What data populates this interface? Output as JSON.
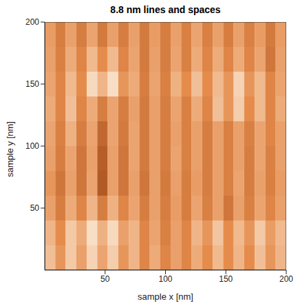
{
  "chart_data": {
    "type": "heatmap",
    "title": "8.8 nm lines and spaces",
    "x_label": "sample x [nm]",
    "y_label": "sample y [nm]",
    "xlim": [
      0,
      200
    ],
    "ylim": [
      0,
      200
    ],
    "xticks": [
      50,
      100,
      150,
      200
    ],
    "yticks": [
      50,
      100,
      150,
      200
    ],
    "clim": [
      0,
      1
    ],
    "x_edges": [
      0,
      8.7,
      17.4,
      26.1,
      34.8,
      43.5,
      52.2,
      60.9,
      69.6,
      78.3,
      87,
      95.7,
      104.3,
      113,
      121.7,
      130.4,
      139.1,
      147.8,
      156.5,
      165.2,
      173.9,
      182.6,
      191.3,
      200
    ],
    "y_edges": [
      0,
      20,
      40,
      60,
      80,
      100,
      120,
      140,
      160,
      180,
      200
    ],
    "cells": [
      [
        0.75,
        0.55,
        0.8,
        0.6,
        0.85,
        0.62,
        0.82,
        0.55,
        0.7,
        0.45,
        0.65,
        0.45,
        0.6,
        0.45,
        0.65,
        0.5,
        0.72,
        0.5,
        0.7,
        0.5,
        0.75,
        0.55,
        0.7
      ],
      [
        0.7,
        0.5,
        0.8,
        0.65,
        0.9,
        0.68,
        0.88,
        0.6,
        0.7,
        0.45,
        0.62,
        0.42,
        0.6,
        0.45,
        0.7,
        0.55,
        0.78,
        0.5,
        0.72,
        0.55,
        0.8,
        0.58,
        0.72
      ],
      [
        0.6,
        0.4,
        0.65,
        0.45,
        0.7,
        0.4,
        0.68,
        0.45,
        0.62,
        0.4,
        0.6,
        0.4,
        0.58,
        0.4,
        0.62,
        0.42,
        0.6,
        0.35,
        0.6,
        0.42,
        0.62,
        0.45,
        0.6
      ],
      [
        0.55,
        0.35,
        0.6,
        0.35,
        0.62,
        0.15,
        0.6,
        0.35,
        0.6,
        0.35,
        0.6,
        0.38,
        0.6,
        0.4,
        0.58,
        0.4,
        0.6,
        0.42,
        0.62,
        0.4,
        0.6,
        0.42,
        0.58
      ],
      [
        0.6,
        0.4,
        0.62,
        0.35,
        0.6,
        0.18,
        0.6,
        0.35,
        0.62,
        0.38,
        0.6,
        0.4,
        0.62,
        0.42,
        0.6,
        0.4,
        0.6,
        0.42,
        0.6,
        0.4,
        0.62,
        0.42,
        0.6
      ],
      [
        0.62,
        0.42,
        0.68,
        0.4,
        0.62,
        0.25,
        0.62,
        0.38,
        0.62,
        0.38,
        0.6,
        0.4,
        0.6,
        0.42,
        0.6,
        0.4,
        0.6,
        0.42,
        0.6,
        0.42,
        0.62,
        0.45,
        0.6
      ],
      [
        0.65,
        0.45,
        0.75,
        0.45,
        0.65,
        0.4,
        0.62,
        0.4,
        0.6,
        0.38,
        0.6,
        0.4,
        0.62,
        0.42,
        0.65,
        0.45,
        0.75,
        0.55,
        0.82,
        0.5,
        0.72,
        0.45,
        0.65
      ],
      [
        0.62,
        0.45,
        0.72,
        0.5,
        0.88,
        0.7,
        0.9,
        0.55,
        0.65,
        0.4,
        0.62,
        0.42,
        0.68,
        0.5,
        0.75,
        0.5,
        0.72,
        0.55,
        0.85,
        0.55,
        0.72,
        0.45,
        0.62
      ],
      [
        0.6,
        0.42,
        0.65,
        0.45,
        0.72,
        0.5,
        0.72,
        0.45,
        0.62,
        0.38,
        0.6,
        0.4,
        0.62,
        0.42,
        0.65,
        0.45,
        0.65,
        0.45,
        0.65,
        0.45,
        0.62,
        0.35,
        0.6
      ],
      [
        0.58,
        0.4,
        0.6,
        0.4,
        0.62,
        0.38,
        0.6,
        0.4,
        0.6,
        0.38,
        0.58,
        0.4,
        0.6,
        0.42,
        0.62,
        0.42,
        0.6,
        0.4,
        0.6,
        0.42,
        0.58,
        0.38,
        0.58
      ]
    ]
  }
}
